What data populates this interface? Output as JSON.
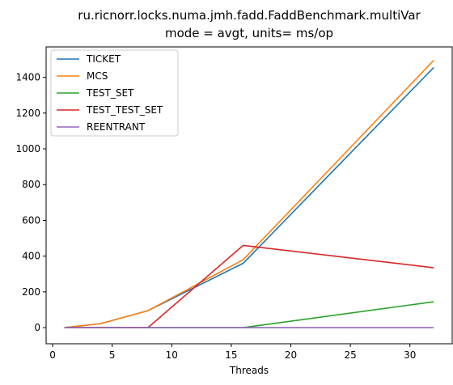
{
  "chart_data": {
    "type": "line",
    "title": "ru.ricnorr.locks.numa.jmh.fadd.FaddBenchmark.multiVar",
    "subtitle": "mode = avgt, units= ms/op",
    "xlabel": "Threads",
    "ylabel": "",
    "xlim": [
      -0.55,
      33.55
    ],
    "ylim": [
      -90,
      1570
    ],
    "xticks": [
      0,
      5,
      10,
      15,
      20,
      25,
      30
    ],
    "yticks": [
      0,
      200,
      400,
      600,
      800,
      1000,
      1200,
      1400
    ],
    "grid": false,
    "legend_position": "top-left",
    "x": [
      1,
      4,
      8,
      16,
      32
    ],
    "series": [
      {
        "name": "TICKET",
        "color": "#1f77b4",
        "values": [
          0,
          22,
          95,
          360,
          1455
        ]
      },
      {
        "name": "MCS",
        "color": "#ff7f0e",
        "values": [
          0,
          22,
          95,
          380,
          1495
        ]
      },
      {
        "name": "TEST_SET",
        "color": "#2ca02c",
        "values": [
          0,
          0,
          0,
          0,
          145
        ]
      },
      {
        "name": "TEST_TEST_SET",
        "color": "#d62728",
        "values": [
          0,
          0,
          0,
          460,
          335
        ]
      },
      {
        "name": "REENTRANT",
        "color": "#9467bd",
        "values": [
          0,
          0,
          0,
          0,
          0
        ]
      }
    ]
  }
}
